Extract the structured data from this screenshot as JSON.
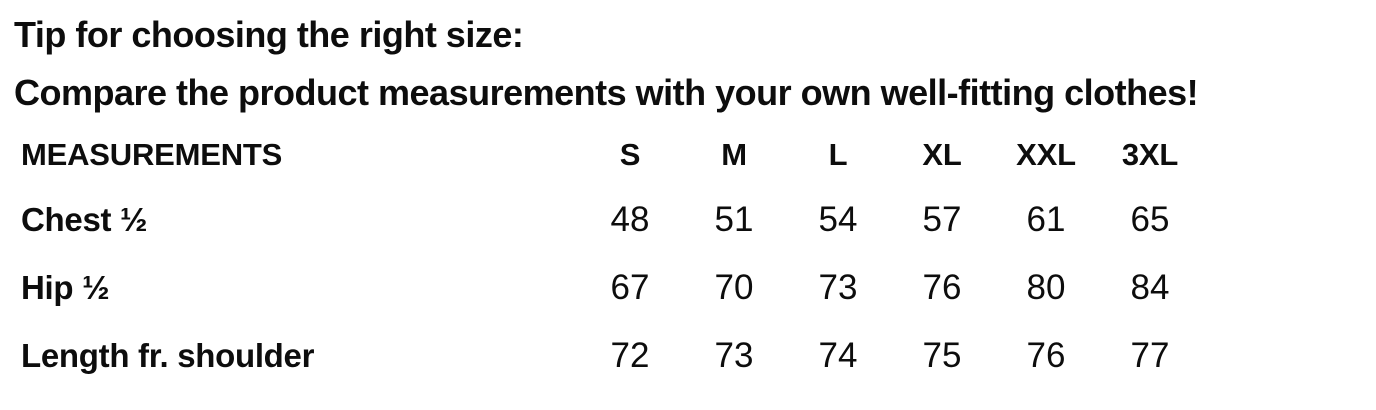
{
  "page": {
    "background_color": "#ffffff",
    "text_color": "#0d0d0d"
  },
  "tip": {
    "line1": "Tip for choosing the right size:",
    "line2": "Compare the product measurements with your own well-fitting clothes!"
  },
  "size_table": {
    "label_header": "MEASUREMENTS",
    "size_headers": [
      "S",
      "M",
      "L",
      "XL",
      "XXL",
      "3XL"
    ],
    "rows": [
      {
        "label": "Chest ½",
        "values": [
          "48",
          "51",
          "54",
          "57",
          "61",
          "65"
        ]
      },
      {
        "label": "Hip ½",
        "values": [
          "67",
          "70",
          "73",
          "76",
          "80",
          "84"
        ]
      },
      {
        "label": "Length fr. shoulder",
        "values": [
          "72",
          "73",
          "74",
          "75",
          "76",
          "77"
        ]
      }
    ]
  },
  "chart_data": {
    "type": "table",
    "title": "Tip for choosing the right size:",
    "subtitle": "Compare the product measurements with your own well-fitting clothes!",
    "columns": [
      "MEASUREMENTS",
      "S",
      "M",
      "L",
      "XL",
      "XXL",
      "3XL"
    ],
    "rows": [
      [
        "Chest ½",
        48,
        51,
        54,
        57,
        61,
        65
      ],
      [
        "Hip ½",
        67,
        70,
        73,
        76,
        80,
        84
      ],
      [
        "Length fr. shoulder",
        72,
        73,
        74,
        75,
        76,
        77
      ]
    ]
  }
}
